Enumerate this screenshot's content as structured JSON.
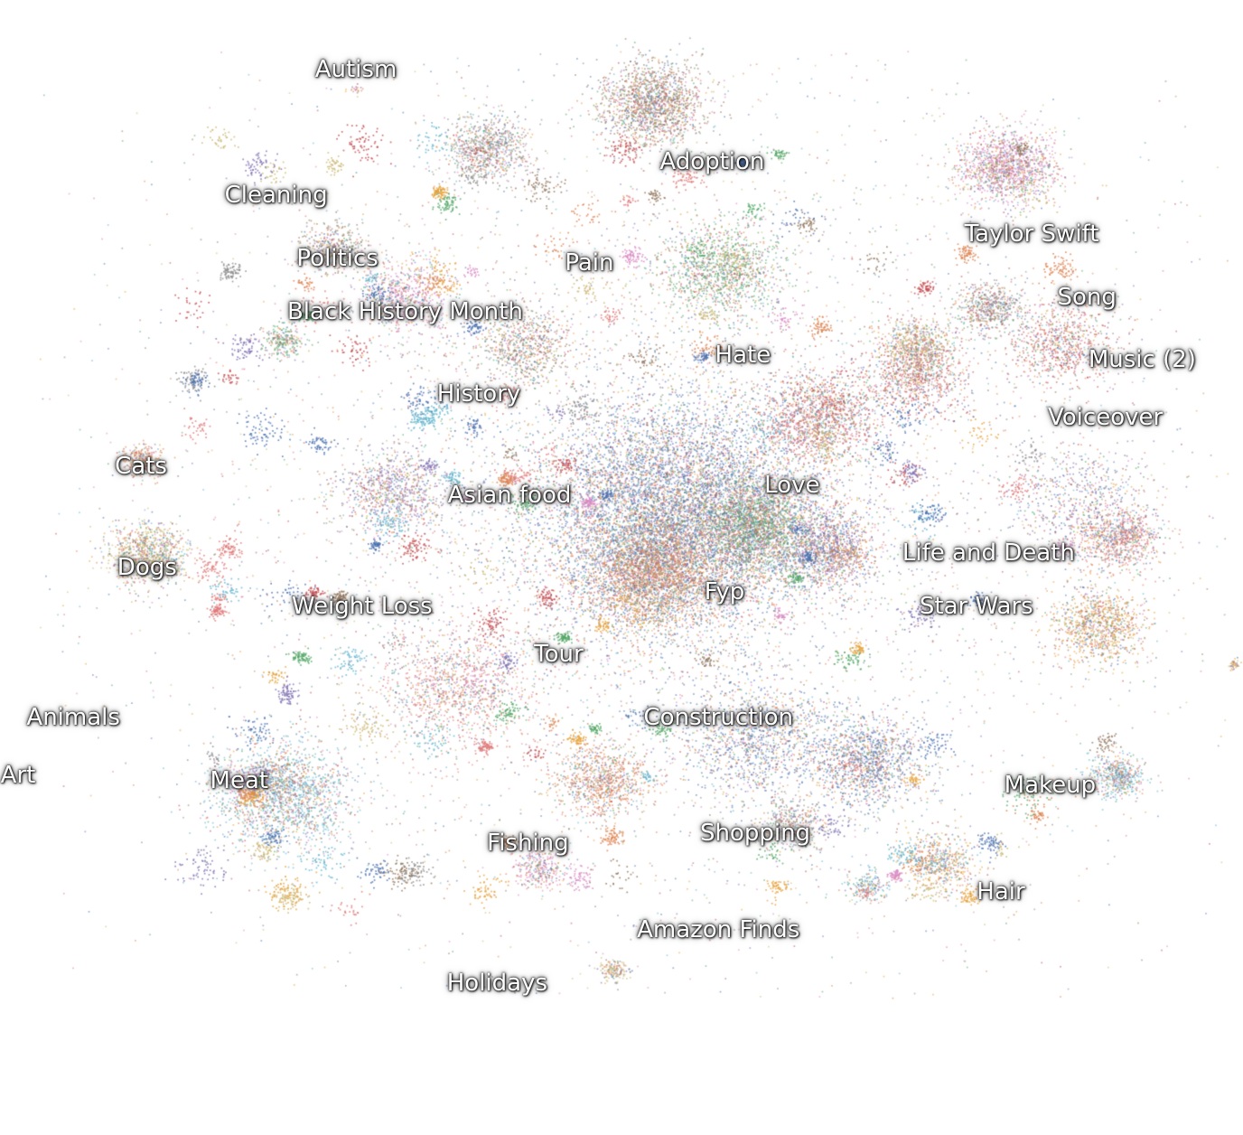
{
  "chart_data": {
    "type": "scatter",
    "title": "",
    "xlabel": "",
    "ylabel": "",
    "grid": false,
    "legend": "none",
    "palette": [
      "#4c72b0",
      "#dd8452",
      "#55a868",
      "#c44e52",
      "#8172b3",
      "#937860",
      "#da8bc3",
      "#8c8c8c",
      "#ccb974",
      "#64b5cd",
      "#e6a23c",
      "#e07b7b"
    ],
    "labels": [
      {
        "name": "Autism",
        "x": -0.45,
        "y": 0.94
      },
      {
        "name": "Adoption",
        "x": 0.13,
        "y": 0.75
      },
      {
        "name": "Cleaning",
        "x": -0.58,
        "y": 0.68
      },
      {
        "name": "Taylor Swift",
        "x": 0.65,
        "y": 0.6
      },
      {
        "name": "Politics",
        "x": -0.48,
        "y": 0.55
      },
      {
        "name": "Pain",
        "x": -0.07,
        "y": 0.54
      },
      {
        "name": "Song",
        "x": 0.74,
        "y": 0.47
      },
      {
        "name": "Black History Month",
        "x": -0.37,
        "y": 0.44
      },
      {
        "name": "Hate",
        "x": 0.18,
        "y": 0.35
      },
      {
        "name": "Music (2)",
        "x": 0.83,
        "y": 0.34
      },
      {
        "name": "History",
        "x": -0.25,
        "y": 0.27
      },
      {
        "name": "Voiceover",
        "x": 0.77,
        "y": 0.22
      },
      {
        "name": "Cats",
        "x": -0.8,
        "y": 0.12
      },
      {
        "name": "Love",
        "x": 0.26,
        "y": 0.08
      },
      {
        "name": "Asian food",
        "x": -0.2,
        "y": 0.06
      },
      {
        "name": "Life and Death",
        "x": 0.58,
        "y": -0.06
      },
      {
        "name": "Dogs",
        "x": -0.79,
        "y": -0.09
      },
      {
        "name": "Fyp",
        "x": 0.15,
        "y": -0.14
      },
      {
        "name": "Weight Loss",
        "x": -0.44,
        "y": -0.17
      },
      {
        "name": "Star Wars",
        "x": 0.56,
        "y": -0.17
      },
      {
        "name": "Tour",
        "x": -0.12,
        "y": -0.27
      },
      {
        "name": "Animals",
        "x": -0.91,
        "y": -0.4
      },
      {
        "name": "Construction",
        "x": 0.14,
        "y": -0.4
      },
      {
        "name": "Art",
        "x": -1.0,
        "y": -0.52
      },
      {
        "name": "Meat",
        "x": -0.64,
        "y": -0.53
      },
      {
        "name": "Makeup",
        "x": 0.68,
        "y": -0.54
      },
      {
        "name": "Shopping",
        "x": 0.2,
        "y": -0.64
      },
      {
        "name": "Fishing",
        "x": -0.17,
        "y": -0.66
      },
      {
        "name": "Hair",
        "x": 0.6,
        "y": -0.76
      },
      {
        "name": "Amazon Finds",
        "x": 0.14,
        "y": -0.84
      },
      {
        "name": "Holidays",
        "x": -0.22,
        "y": -0.95
      }
    ],
    "clusters": [
      {
        "x": 0.08,
        "y": 0.02,
        "spread": 0.22,
        "points": 9000
      },
      {
        "x": 0.03,
        "y": -0.1,
        "spread": 0.1,
        "points": 2600
      },
      {
        "x": 0.2,
        "y": 0.0,
        "spread": 0.08,
        "points": 1600
      },
      {
        "x": 0.31,
        "y": 0.23,
        "spread": 0.08,
        "points": 1200
      },
      {
        "x": 0.32,
        "y": -0.05,
        "spread": 0.07,
        "points": 1100
      },
      {
        "x": 0.03,
        "y": 0.87,
        "spread": 0.08,
        "points": 1600
      },
      {
        "x": 0.61,
        "y": 0.74,
        "spread": 0.07,
        "points": 1400
      },
      {
        "x": -0.24,
        "y": 0.78,
        "spread": 0.06,
        "points": 800
      },
      {
        "x": -0.79,
        "y": -0.06,
        "spread": 0.06,
        "points": 900
      },
      {
        "x": -0.57,
        "y": -0.56,
        "spread": 0.1,
        "points": 1800
      },
      {
        "x": 0.76,
        "y": -0.21,
        "spread": 0.07,
        "points": 1000
      },
      {
        "x": 0.79,
        "y": -0.03,
        "spread": 0.06,
        "points": 800
      },
      {
        "x": 0.38,
        "y": -0.49,
        "spread": 0.09,
        "points": 1300
      },
      {
        "x": -0.05,
        "y": -0.53,
        "spread": 0.07,
        "points": 900
      },
      {
        "x": 0.14,
        "y": 0.53,
        "spread": 0.09,
        "points": 1200
      },
      {
        "x": 0.46,
        "y": 0.31,
        "spread": 0.08,
        "points": 900
      },
      {
        "x": -0.39,
        "y": 0.07,
        "spread": 0.08,
        "points": 900
      },
      {
        "x": -0.18,
        "y": 0.37,
        "spread": 0.07,
        "points": 700
      },
      {
        "x": -0.37,
        "y": 0.47,
        "spread": 0.07,
        "points": 700
      },
      {
        "x": 0.58,
        "y": 0.45,
        "spread": 0.05,
        "points": 600
      },
      {
        "x": 0.46,
        "y": 0.37,
        "spread": 0.05,
        "points": 600
      },
      {
        "x": 0.79,
        "y": -0.52,
        "spread": 0.04,
        "points": 500
      },
      {
        "x": 0.5,
        "y": -0.7,
        "spread": 0.06,
        "points": 500
      },
      {
        "x": -0.28,
        "y": -0.33,
        "spread": 0.12,
        "points": 1200
      },
      {
        "x": 0.2,
        "y": -0.44,
        "spread": 0.11,
        "points": 1200
      },
      {
        "x": -0.8,
        "y": 0.13,
        "spread": 0.03,
        "points": 300
      },
      {
        "x": -0.57,
        "y": 0.38,
        "spread": 0.03,
        "points": 250
      },
      {
        "x": 0.7,
        "y": 0.38,
        "spread": 0.08,
        "points": 800
      },
      {
        "x": 0.74,
        "y": 0.05,
        "spread": 0.11,
        "points": 700
      },
      {
        "x": -0.49,
        "y": 0.57,
        "spread": 0.05,
        "points": 400
      },
      {
        "x": -0.15,
        "y": -0.71,
        "spread": 0.04,
        "points": 300
      },
      {
        "x": 0.26,
        "y": -0.62,
        "spread": 0.05,
        "points": 400
      },
      {
        "x": -0.03,
        "y": -0.92,
        "spread": 0.02,
        "points": 150
      },
      {
        "x": 0.38,
        "y": -0.75,
        "spread": 0.03,
        "points": 180
      },
      {
        "x": 0.98,
        "y": -0.29,
        "spread": 0.01,
        "points": 40
      },
      {
        "x": -0.45,
        "y": 0.9,
        "spread": 0.01,
        "points": 20
      }
    ],
    "noise_points": 5500,
    "xlim": [
      -1.0,
      1.0
    ],
    "ylim": [
      -1.0,
      1.0
    ]
  }
}
